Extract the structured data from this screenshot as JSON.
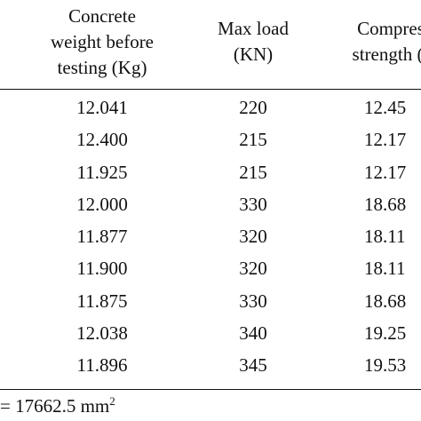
{
  "table": {
    "headers": [
      [
        "Concrete",
        "weight before",
        "testing (Kg)"
      ],
      [
        "Max load",
        "(KN)"
      ],
      [
        "Compres",
        "strength (I"
      ]
    ],
    "rows": [
      [
        "12.041",
        "220",
        "12.45"
      ],
      [
        "12.400",
        "215",
        "12.17"
      ],
      [
        "11.925",
        "215",
        "12.17"
      ],
      [
        "12.000",
        "330",
        "18.68"
      ],
      [
        "11.877",
        "320",
        "18.11"
      ],
      [
        "11.900",
        "320",
        "18.11"
      ],
      [
        "11.875",
        "330",
        "18.68"
      ],
      [
        "12.038",
        "340",
        "19.25"
      ],
      [
        "11.896",
        "345",
        "19.53"
      ]
    ]
  },
  "footnote": {
    "text": "= 17662.5 mm",
    "superscript": "2"
  }
}
